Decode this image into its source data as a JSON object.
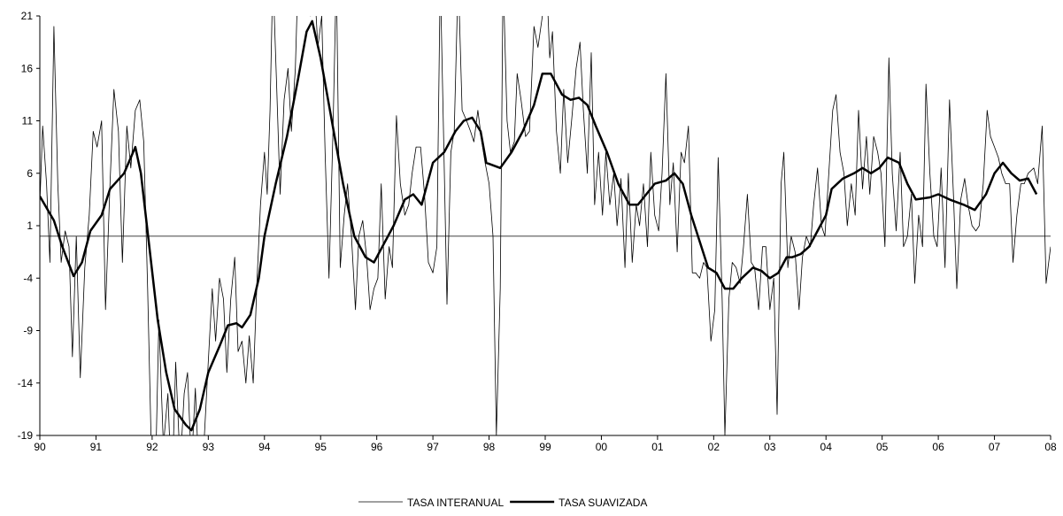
{
  "chart_data": {
    "type": "line",
    "ylim": [
      -19,
      21
    ],
    "yticks": [
      -19,
      -14,
      -9,
      -4,
      1,
      6,
      11,
      16,
      21
    ],
    "xlim": [
      1990,
      2008
    ],
    "xticks": [
      {
        "value": 1990,
        "label": "90"
      },
      {
        "value": 1991,
        "label": "91"
      },
      {
        "value": 1992,
        "label": "92"
      },
      {
        "value": 1993,
        "label": "93"
      },
      {
        "value": 1994,
        "label": "94"
      },
      {
        "value": 1995,
        "label": "95"
      },
      {
        "value": 1996,
        "label": "96"
      },
      {
        "value": 1997,
        "label": "97"
      },
      {
        "value": 1998,
        "label": "98"
      },
      {
        "value": 1999,
        "label": "99"
      },
      {
        "value": 2000,
        "label": "00"
      },
      {
        "value": 2001,
        "label": "01"
      },
      {
        "value": 2002,
        "label": "02"
      },
      {
        "value": 2003,
        "label": "03"
      },
      {
        "value": 2004,
        "label": "04"
      },
      {
        "value": 2005,
        "label": "05"
      },
      {
        "value": 2006,
        "label": "06"
      },
      {
        "value": 2007,
        "label": "07"
      },
      {
        "value": 2008,
        "label": "08"
      }
    ],
    "hline": 0,
    "legend": "bottom",
    "series": [
      {
        "name": "TASA INTERANUAL",
        "color": "#000000",
        "width": 0.8,
        "x": [
          1990.0,
          1990.05,
          1990.12,
          1990.18,
          1990.25,
          1990.32,
          1990.38,
          1990.45,
          1990.52,
          1990.58,
          1990.65,
          1990.72,
          1990.8,
          1990.88,
          1990.95,
          1991.02,
          1991.1,
          1991.17,
          1991.25,
          1991.32,
          1991.4,
          1991.47,
          1991.55,
          1991.62,
          1991.7,
          1991.78,
          1991.85,
          1991.92,
          1991.98,
          1992.05,
          1992.12,
          1992.2,
          1992.28,
          1992.35,
          1992.42,
          1992.5,
          1992.57,
          1992.63,
          1992.7,
          1992.77,
          1992.85,
          1992.92,
          1993.0,
          1993.07,
          1993.13,
          1993.2,
          1993.27,
          1993.33,
          1993.4,
          1993.47,
          1993.53,
          1993.6,
          1993.67,
          1993.73,
          1993.8,
          1993.87,
          1993.93,
          1994.0,
          1994.05,
          1994.1,
          1994.15,
          1994.22,
          1994.28,
          1994.35,
          1994.42,
          1994.48,
          1994.55,
          1994.6,
          1994.68,
          1994.75,
          1994.82,
          1994.88,
          1994.95,
          1995.02,
          1995.08,
          1995.15,
          1995.22,
          1995.28,
          1995.35,
          1995.42,
          1995.48,
          1995.55,
          1995.62,
          1995.68,
          1995.75,
          1995.82,
          1995.88,
          1995.95,
          1996.02,
          1996.08,
          1996.15,
          1996.22,
          1996.28,
          1996.35,
          1996.42,
          1996.5,
          1996.57,
          1996.63,
          1996.7,
          1996.78,
          1996.85,
          1996.92,
          1997.0,
          1997.07,
          1997.13,
          1997.2,
          1997.25,
          1997.32,
          1997.38,
          1997.45,
          1997.52,
          1997.6,
          1997.67,
          1997.73,
          1997.8,
          1997.87,
          1997.93,
          1998.0,
          1998.07,
          1998.13,
          1998.2,
          1998.25,
          1998.32,
          1998.38,
          1998.45,
          1998.5,
          1998.57,
          1998.65,
          1998.72,
          1998.8,
          1998.87,
          1998.95,
          1999.02,
          1999.08,
          1999.13,
          1999.2,
          1999.27,
          1999.33,
          1999.4,
          1999.47,
          1999.55,
          1999.62,
          1999.68,
          1999.75,
          1999.82,
          1999.88,
          1999.95,
          2000.02,
          2000.08,
          2000.15,
          2000.22,
          2000.28,
          2000.35,
          2000.42,
          2000.48,
          2000.55,
          2000.62,
          2000.68,
          2000.75,
          2000.82,
          2000.88,
          2000.95,
          2001.02,
          2001.08,
          2001.15,
          2001.22,
          2001.28,
          2001.35,
          2001.42,
          2001.48,
          2001.55,
          2001.62,
          2001.68,
          2001.75,
          2001.82,
          2001.88,
          2001.95,
          2002.02,
          2002.08,
          2002.15,
          2002.2,
          2002.27,
          2002.33,
          2002.4,
          2002.47,
          2002.53,
          2002.6,
          2002.67,
          2002.73,
          2002.8,
          2002.87,
          2002.93,
          2003.0,
          2003.07,
          2003.13,
          2003.2,
          2003.25,
          2003.32,
          2003.38,
          2003.45,
          2003.52,
          2003.58,
          2003.65,
          2003.72,
          2003.78,
          2003.85,
          2003.92,
          2003.98,
          2004.05,
          2004.12,
          2004.18,
          2004.25,
          2004.32,
          2004.38,
          2004.45,
          2004.52,
          2004.58,
          2004.65,
          2004.72,
          2004.78,
          2004.85,
          2004.92,
          2004.98,
          2005.05,
          2005.12,
          2005.18,
          2005.25,
          2005.32,
          2005.38,
          2005.45,
          2005.52,
          2005.58,
          2005.65,
          2005.72,
          2005.78,
          2005.85,
          2005.92,
          2005.98,
          2006.05,
          2006.12,
          2006.2,
          2006.27,
          2006.33,
          2006.4,
          2006.47,
          2006.53,
          2006.6,
          2006.67,
          2006.73,
          2006.8,
          2006.87,
          2006.93,
          2007.0,
          2007.07,
          2007.13,
          2007.2,
          2007.27,
          2007.33,
          2007.4,
          2007.47,
          2007.53,
          2007.6,
          2007.7,
          2007.77,
          2007.85,
          2007.92,
          2008.0
        ],
        "values": [
          3,
          10.5,
          5,
          -2.5,
          20,
          5,
          -2.5,
          0.5,
          -1,
          -11.5,
          0,
          -13.5,
          -3,
          2,
          10,
          8.5,
          11,
          -7,
          5,
          14,
          10,
          -2.5,
          10.5,
          6.5,
          12,
          13,
          9,
          -5,
          -19,
          -25,
          -8,
          -20,
          -15,
          -25,
          -12,
          -22,
          -15,
          -13,
          -22,
          -14.5,
          -25,
          -20,
          -12,
          -5,
          -10,
          -4,
          -6,
          -13,
          -6,
          -2,
          -11,
          -10,
          -14,
          -9.5,
          -14,
          -4,
          3,
          8,
          4,
          12,
          25,
          14,
          4,
          13,
          16,
          10,
          16,
          25,
          22,
          25,
          21,
          25,
          18,
          21,
          8,
          -4,
          10,
          25,
          -3,
          2,
          5,
          0,
          -7,
          0,
          1.5,
          -2,
          -7,
          -5,
          -4,
          5,
          -6,
          -1,
          -3,
          11.5,
          5,
          2,
          3,
          6,
          8.5,
          8.5,
          4,
          -2.5,
          -3.5,
          -1,
          25,
          7,
          -6.5,
          8,
          10,
          25,
          12,
          11,
          10,
          9,
          12,
          9,
          7,
          5,
          0,
          -19,
          -5,
          25,
          11,
          8,
          9,
          15.5,
          13,
          9.5,
          10,
          20,
          18,
          21,
          25,
          17,
          19.5,
          10,
          6,
          14,
          7,
          11,
          16,
          18.5,
          12,
          6,
          17.5,
          3,
          8,
          2,
          8,
          3,
          6,
          1,
          5.5,
          -3,
          6,
          -2.5,
          3,
          1,
          5,
          -1,
          8,
          2,
          0.5,
          6,
          15.5,
          3,
          7,
          -1.5,
          8,
          7,
          10.5,
          -3.5,
          -3.5,
          -4,
          -2.5,
          -3,
          -10,
          -7,
          7.5,
          -6,
          -19,
          -6,
          -2.5,
          -3,
          -4.5,
          -1,
          4,
          -2.5,
          -3,
          -7,
          -1,
          -1,
          -7,
          -4,
          -17,
          5,
          8,
          -3,
          0,
          -1.5,
          -7,
          -2,
          0,
          -1,
          3,
          6.5,
          1,
          0,
          6,
          12,
          13.5,
          8,
          6,
          1,
          5,
          2,
          12,
          4.5,
          9.5,
          4,
          9.5,
          8,
          6,
          -1,
          17,
          6,
          0.5,
          8,
          -1,
          0,
          4,
          -4.5,
          2,
          -1,
          14.5,
          6,
          0,
          -1,
          6.5,
          -3,
          13,
          4,
          -5,
          3.5,
          5.5,
          3,
          1,
          0.5,
          1,
          5,
          12,
          9.5,
          8.5,
          7.5,
          6,
          5,
          5,
          -2.5,
          2,
          5,
          5,
          6,
          6.5,
          5,
          10.5,
          -4.5,
          -1
        ]
      },
      {
        "name": "TASA SUAVIZADA",
        "color": "#000000",
        "width": 2.5,
        "x": [
          1990.0,
          1990.25,
          1990.4,
          1990.6,
          1990.75,
          1990.9,
          1991.1,
          1991.25,
          1991.5,
          1991.7,
          1991.8,
          1991.95,
          1992.1,
          1992.25,
          1992.4,
          1992.6,
          1992.7,
          1992.85,
          1993.0,
          1993.2,
          1993.35,
          1993.5,
          1993.6,
          1993.75,
          1993.9,
          1994.0,
          1994.2,
          1994.4,
          1994.6,
          1994.75,
          1994.85,
          1995.0,
          1995.2,
          1995.4,
          1995.6,
          1995.8,
          1995.95,
          1996.1,
          1996.3,
          1996.5,
          1996.65,
          1996.8,
          1996.9,
          1997.0,
          1997.2,
          1997.4,
          1997.55,
          1997.7,
          1997.85,
          1997.95,
          1998.2,
          1998.4,
          1998.6,
          1998.8,
          1998.95,
          1999.1,
          1999.3,
          1999.45,
          1999.6,
          1999.75,
          1999.9,
          2000.1,
          2000.3,
          2000.5,
          2000.65,
          2000.8,
          2000.95,
          2001.15,
          2001.3,
          2001.45,
          2001.6,
          2001.75,
          2001.9,
          2002.05,
          2002.2,
          2002.35,
          2002.5,
          2002.7,
          2002.85,
          2003.0,
          2003.15,
          2003.3,
          2003.4,
          2003.55,
          2003.7,
          2003.85,
          2004.0,
          2004.1,
          2004.3,
          2004.5,
          2004.65,
          2004.8,
          2004.95,
          2005.1,
          2005.3,
          2005.45,
          2005.6,
          2005.85,
          2006.0,
          2006.2,
          2006.45,
          2006.65,
          2006.85,
          2007.0,
          2007.15,
          2007.3,
          2007.45,
          2007.6,
          2007.75
        ],
        "values": [
          3.8,
          1.5,
          -1,
          -3.8,
          -2.5,
          0.5,
          2,
          4.5,
          6,
          8.5,
          6,
          -1,
          -8,
          -13,
          -16.5,
          -18,
          -18.5,
          -16.5,
          -13,
          -10.5,
          -8.5,
          -8.3,
          -8.7,
          -7.5,
          -4,
          0,
          5,
          9.5,
          15,
          19.5,
          20.5,
          17,
          11,
          5,
          0,
          -2,
          -2.5,
          -1,
          1,
          3.5,
          4,
          3,
          5,
          7,
          8,
          10,
          11,
          11.3,
          10,
          7,
          6.5,
          8,
          10,
          12.5,
          15.5,
          15.5,
          13.5,
          13,
          13.2,
          12.5,
          10.5,
          8,
          5,
          3,
          3,
          4,
          5,
          5.3,
          6,
          5,
          2,
          -0.5,
          -3,
          -3.5,
          -5,
          -5,
          -4,
          -3,
          -3.3,
          -4,
          -3.5,
          -2,
          -2,
          -1.7,
          -1,
          0.5,
          2,
          4.5,
          5.5,
          6,
          6.5,
          6,
          6.5,
          7.5,
          7,
          5,
          3.5,
          3.7,
          4,
          3.5,
          3,
          2.5,
          4,
          6,
          7,
          6,
          5.3,
          5.5,
          4
        ]
      }
    ]
  }
}
